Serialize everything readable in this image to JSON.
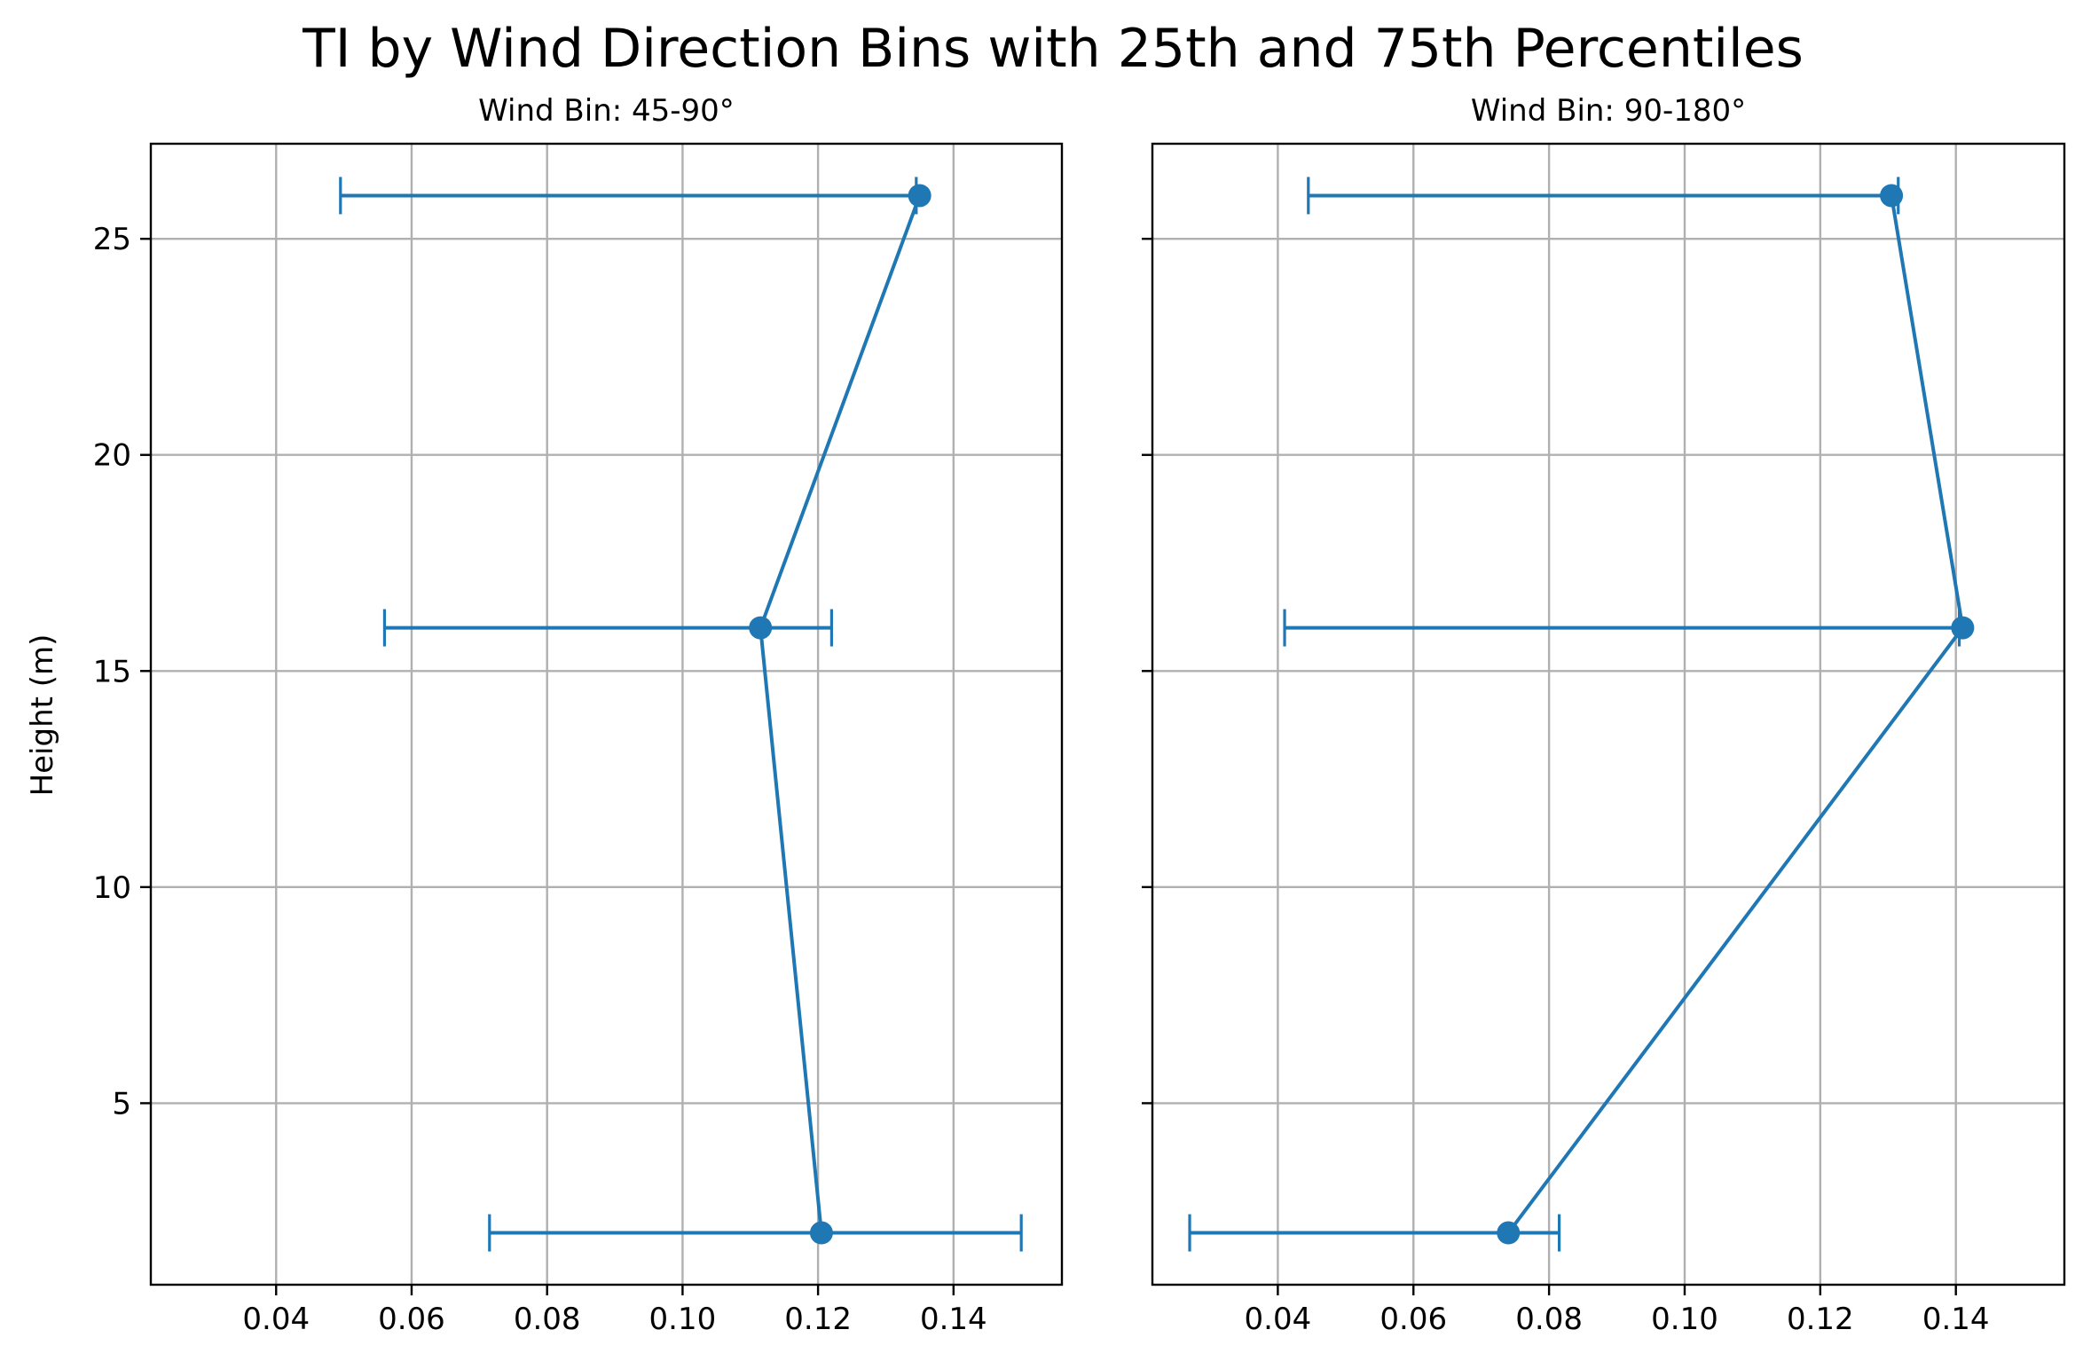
{
  "figure": {
    "title": "TI by Wind Direction Bins with 25th and 75th Percentiles",
    "shared_ylabel": "Height (m)",
    "color": "#1f77b4"
  },
  "chart_data": [
    {
      "type": "line",
      "title": "Wind Bin: 45-90°",
      "xlabel": "",
      "ylabel": "Height (m)",
      "xlim": [
        0.0215,
        0.156
      ],
      "ylim": [
        0.8,
        27.2
      ],
      "xticks": [
        0.04,
        0.06,
        0.08,
        0.1,
        0.12,
        0.14
      ],
      "xtick_labels": [
        "0.04",
        "0.06",
        "0.08",
        "0.10",
        "0.12",
        "0.14"
      ],
      "yticks": [
        5,
        10,
        15,
        20,
        25
      ],
      "ytick_labels": [
        "5",
        "10",
        "15",
        "20",
        "25"
      ],
      "grid": true,
      "points": [
        {
          "height": 2,
          "ti": 0.1205,
          "p25": 0.0715,
          "p75": 0.15
        },
        {
          "height": 16,
          "ti": 0.1115,
          "p25": 0.056,
          "p75": 0.122
        },
        {
          "height": 26,
          "ti": 0.135,
          "p25": 0.0495,
          "p75": 0.1345
        }
      ]
    },
    {
      "type": "line",
      "title": "Wind Bin: 90-180°",
      "xlabel": "",
      "ylabel": "",
      "xlim": [
        0.0215,
        0.156
      ],
      "ylim": [
        0.8,
        27.2
      ],
      "xticks": [
        0.04,
        0.06,
        0.08,
        0.1,
        0.12,
        0.14
      ],
      "xtick_labels": [
        "0.04",
        "0.06",
        "0.08",
        "0.10",
        "0.12",
        "0.14"
      ],
      "yticks": [
        5,
        10,
        15,
        20,
        25
      ],
      "ytick_labels": [],
      "grid": true,
      "points": [
        {
          "height": 2,
          "ti": 0.074,
          "p25": 0.027,
          "p75": 0.0815
        },
        {
          "height": 16,
          "ti": 0.141,
          "p25": 0.041,
          "p75": 0.1405
        },
        {
          "height": 26,
          "ti": 0.1305,
          "p25": 0.0445,
          "p75": 0.1315
        }
      ]
    }
  ]
}
